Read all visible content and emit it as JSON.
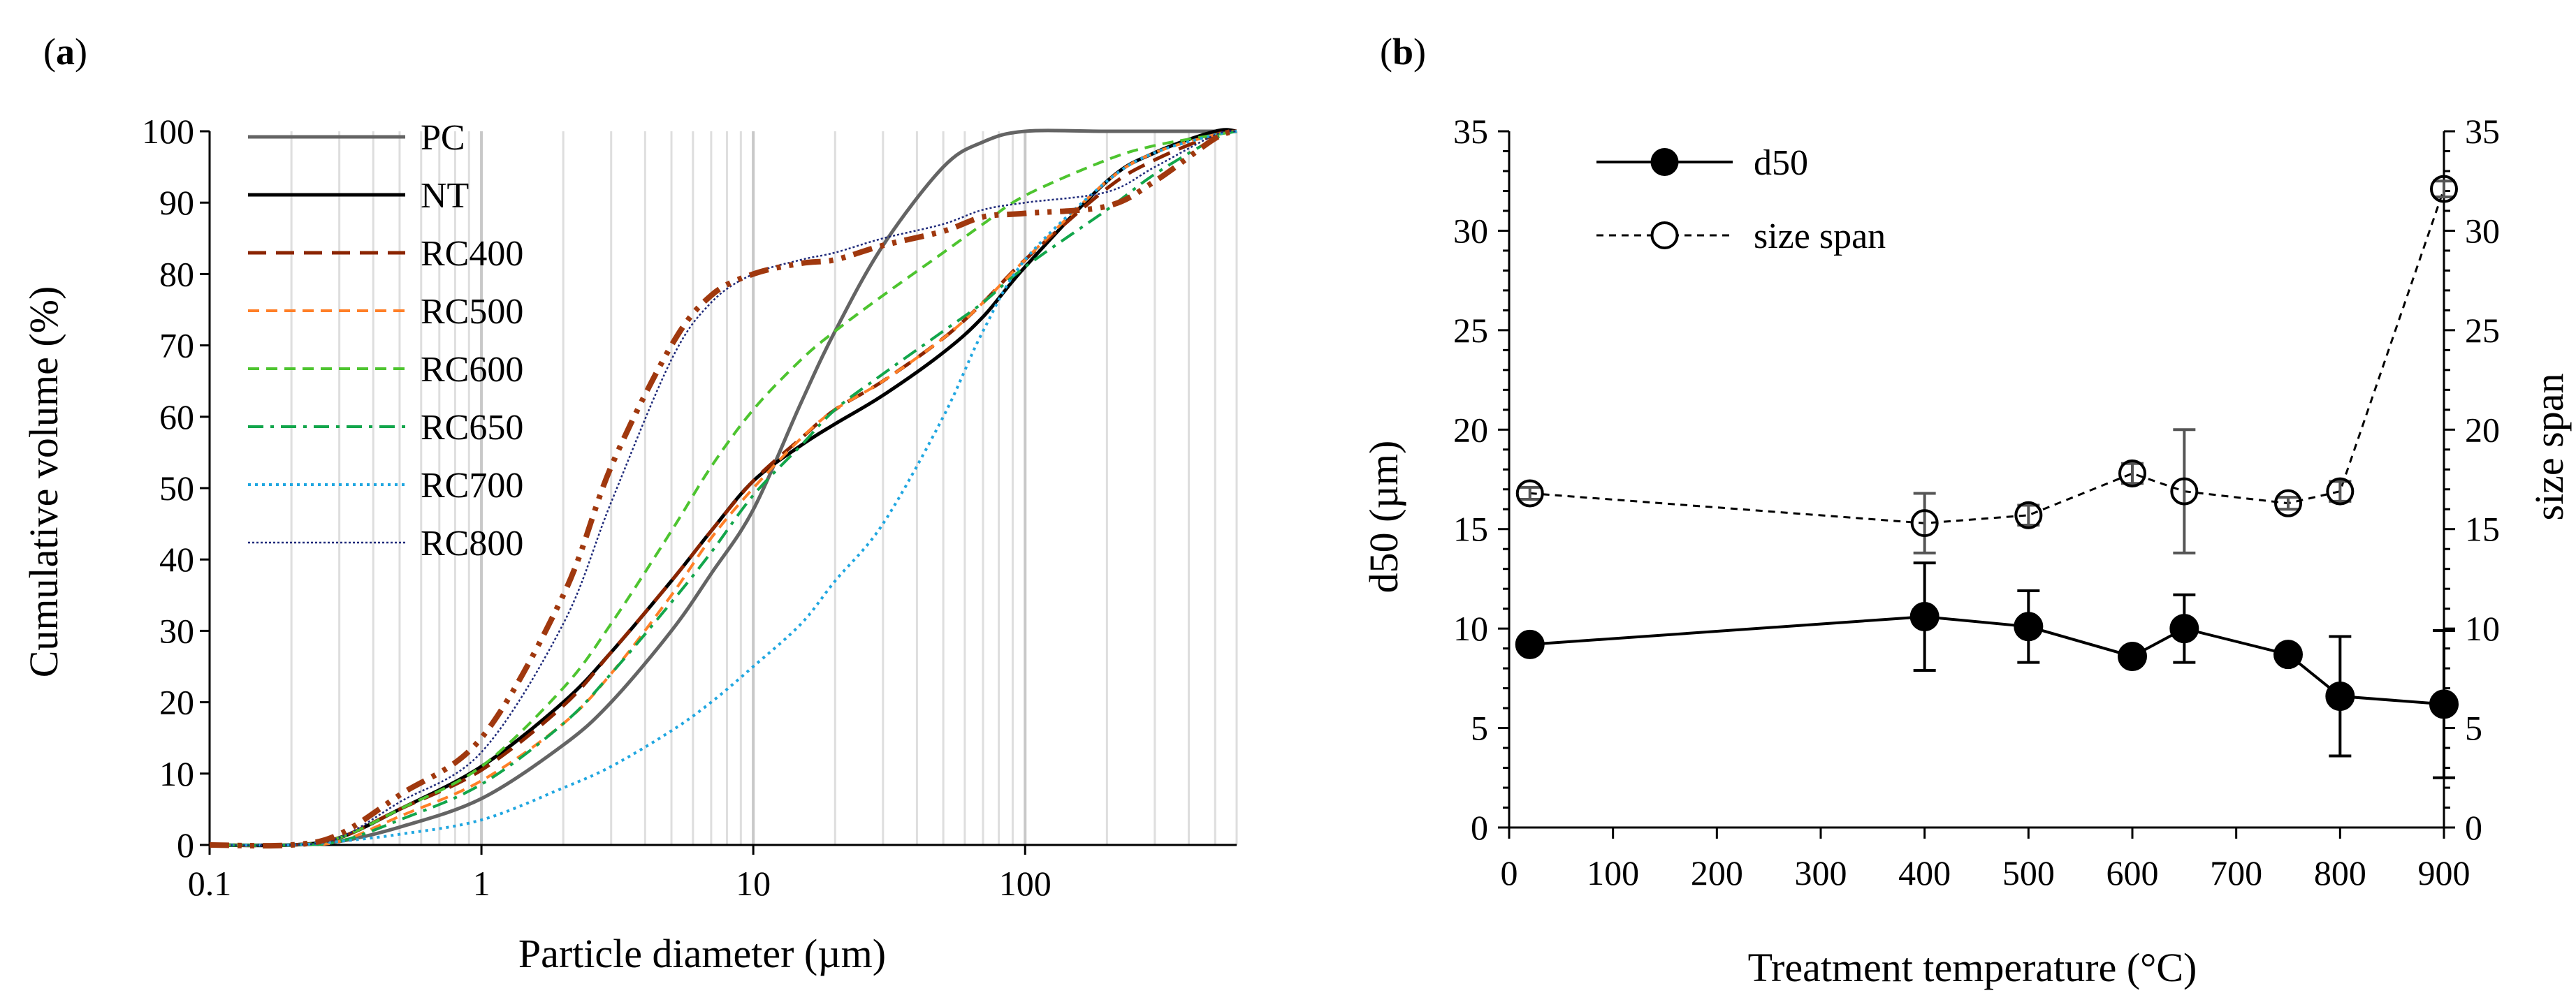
{
  "chart_data": [
    {
      "panel": "(a)",
      "panel_open": "(",
      "panel_letter": "a",
      "panel_close": ")",
      "type": "line",
      "xscale": "log",
      "xlabel": "Particle diameter (µm)",
      "ylabel": "Cumulative volume (%)",
      "xlim": [
        0.1,
        600
      ],
      "ylim": [
        0,
        100
      ],
      "xticks": [
        0.1,
        1,
        10,
        100
      ],
      "xtick_labels": [
        "0.1",
        "1",
        "10",
        "100"
      ],
      "yticks": [
        0,
        10,
        20,
        30,
        40,
        50,
        60,
        70,
        80,
        90,
        100
      ],
      "ytick_labels": [
        "0",
        "10",
        "20",
        "30",
        "40",
        "50",
        "60",
        "70",
        "80",
        "90",
        "100"
      ],
      "grid": "vertical log minor gridlines",
      "legend_position": "top-left",
      "series": [
        {
          "name": "PC",
          "color": "#646464",
          "dash": "solid",
          "width": 5,
          "x": [
            0.1,
            0.2,
            0.3,
            0.5,
            1,
            2,
            3,
            5,
            7,
            10,
            15,
            20,
            30,
            50,
            70,
            100,
            200,
            500,
            600
          ],
          "y": [
            0,
            0,
            0.5,
            2.5,
            6.5,
            14,
            20,
            30,
            38,
            47,
            62,
            72,
            84,
            95,
            98.5,
            100,
            100,
            100,
            100
          ]
        },
        {
          "name": "NT",
          "color": "#000000",
          "dash": "solid",
          "width": 5,
          "x": [
            0.1,
            0.2,
            0.3,
            0.5,
            1,
            2,
            3,
            5,
            7,
            10,
            15,
            20,
            30,
            50,
            70,
            100,
            200,
            300,
            500,
            600
          ],
          "y": [
            0,
            0,
            1,
            5,
            11,
            20,
            27,
            37,
            44,
            51,
            56,
            59,
            63,
            69,
            74,
            81,
            93,
            97,
            100,
            100
          ]
        },
        {
          "name": "RC400",
          "color": "#8B2500",
          "dash": "long-dash",
          "width": 5,
          "x": [
            0.1,
            0.2,
            0.3,
            0.5,
            1,
            2,
            3,
            5,
            7,
            10,
            15,
            20,
            30,
            50,
            70,
            100,
            200,
            300,
            500,
            600
          ],
          "y": [
            0,
            0,
            1,
            5,
            10.5,
            19.5,
            27,
            37,
            44,
            51,
            57,
            61,
            65,
            71,
            76,
            82,
            92,
            96,
            99.5,
            100
          ]
        },
        {
          "name": "RC500",
          "color": "#FF7F27",
          "dash": "dash",
          "width": 4,
          "x": [
            0.1,
            0.2,
            0.3,
            0.5,
            1,
            2,
            3,
            5,
            7,
            10,
            15,
            20,
            30,
            50,
            70,
            100,
            200,
            300,
            500,
            600
          ],
          "y": [
            0,
            0,
            0.5,
            4,
            9,
            17,
            24,
            35,
            43,
            50,
            57,
            61,
            65,
            71,
            76,
            82,
            93,
            97,
            99.5,
            100
          ]
        },
        {
          "name": "RC600",
          "color": "#4DC42F",
          "dash": "dash",
          "width": 4,
          "x": [
            0.1,
            0.2,
            0.3,
            0.5,
            1,
            2,
            3,
            5,
            7,
            10,
            15,
            20,
            30,
            50,
            70,
            100,
            200,
            300,
            500,
            600
          ],
          "y": [
            0,
            0,
            1,
            5,
            11,
            22,
            31,
            44,
            53,
            61,
            68,
            72,
            77,
            83,
            87,
            91,
            96,
            98,
            99.5,
            100
          ]
        },
        {
          "name": "RC650",
          "color": "#12A64B",
          "dash": "dash-dot",
          "width": 4,
          "x": [
            0.1,
            0.2,
            0.3,
            0.5,
            1,
            2,
            3,
            5,
            7,
            10,
            15,
            20,
            30,
            50,
            70,
            100,
            200,
            300,
            500,
            600
          ],
          "y": [
            0,
            0,
            0.5,
            3.5,
            8.5,
            17,
            24,
            34,
            41,
            49,
            56,
            61,
            66,
            72,
            76,
            81,
            89,
            94,
            99,
            100
          ]
        },
        {
          "name": "RC700",
          "color": "#1FA6E0",
          "dash": "dot",
          "width": 4,
          "x": [
            0.1,
            0.2,
            0.3,
            0.5,
            1,
            2,
            3,
            5,
            7,
            10,
            15,
            20,
            30,
            50,
            70,
            100,
            200,
            300,
            500,
            600
          ],
          "y": [
            0,
            0,
            0.5,
            1.5,
            3.5,
            8,
            11,
            16,
            20,
            25,
            31,
            37,
            45,
            60,
            72,
            82,
            93,
            97,
            99.5,
            100
          ]
        },
        {
          "name": "RC800",
          "color": "#1F2A7A",
          "dash": "fine-dot",
          "width": 2.5,
          "x": [
            0.1,
            0.2,
            0.3,
            0.5,
            1,
            2,
            3,
            5,
            7,
            10,
            15,
            20,
            30,
            50,
            70,
            100,
            200,
            300,
            500,
            600
          ],
          "y": [
            0,
            0,
            1,
            6,
            13,
            31,
            48,
            68,
            76,
            80,
            82,
            83,
            85,
            87,
            89,
            90,
            91.5,
            95,
            99.5,
            100
          ]
        },
        {
          "name": "RC400_bold",
          "legend": false,
          "color": "#A0380E",
          "dash": "dash-dot-dot",
          "width": 8,
          "x": [
            0.1,
            0.2,
            0.3,
            0.5,
            1,
            2,
            3,
            5,
            7,
            10,
            15,
            20,
            30,
            50,
            70,
            100,
            200,
            300,
            500,
            600
          ],
          "y": [
            0,
            0,
            1.5,
            7,
            15,
            35,
            53,
            70,
            77,
            80,
            81.5,
            82,
            84,
            86,
            88,
            88.5,
            89.5,
            93,
            99,
            100
          ]
        }
      ],
      "legend": [
        "PC",
        "NT",
        "RC400",
        "RC500",
        "RC600",
        "RC650",
        "RC700",
        "RC800"
      ]
    },
    {
      "panel": "(b)",
      "panel_open": "(",
      "panel_letter": "b",
      "panel_close": ")",
      "type": "line",
      "xlabel": "Treatment temperature (°C)",
      "ylabel_left": "d50 (µm)",
      "ylabel_right": "size span",
      "xlim": [
        0,
        900
      ],
      "ylim": [
        0,
        35
      ],
      "xticks": [
        0,
        100,
        200,
        300,
        400,
        500,
        600,
        700,
        800,
        900
      ],
      "xtick_labels": [
        "0",
        "100",
        "200",
        "300",
        "400",
        "500",
        "600",
        "700",
        "800",
        "900"
      ],
      "yticks": [
        0,
        5,
        10,
        15,
        20,
        25,
        30,
        35
      ],
      "ytick_labels": [
        "0",
        "5",
        "10",
        "15",
        "20",
        "25",
        "30",
        "35"
      ],
      "legend_position": "top-left",
      "series": [
        {
          "name": "d50",
          "axis": "left",
          "marker": "filled-circle",
          "dash": "solid",
          "x": [
            20,
            400,
            500,
            600,
            650,
            750,
            800,
            900
          ],
          "y": [
            9.2,
            10.6,
            10.1,
            8.6,
            10.0,
            8.7,
            6.6,
            6.2
          ],
          "err": [
            0.3,
            2.7,
            1.8,
            0.4,
            1.7,
            0.3,
            3.0,
            3.7
          ]
        },
        {
          "name": "size span",
          "axis": "right",
          "marker": "open-circle",
          "dash": "dash",
          "x": [
            20,
            400,
            500,
            600,
            650,
            750,
            800,
            900
          ],
          "y": [
            16.8,
            15.3,
            15.7,
            17.8,
            16.9,
            16.3,
            16.9,
            32.1
          ],
          "err": [
            0.3,
            1.5,
            0.5,
            0.5,
            3.1,
            0.3,
            0.5,
            0.4
          ]
        }
      ]
    }
  ]
}
